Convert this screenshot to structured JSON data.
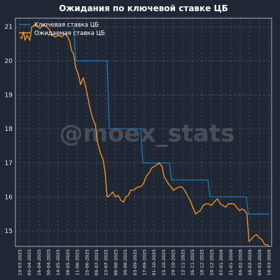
{
  "chart_data": {
    "type": "line",
    "title": "Ожидания по ключевой ставке ЦБ",
    "watermark": "@moex_stats",
    "ylim": [
      14.55,
      21.25
    ],
    "y_ticks": [
      15,
      16,
      17,
      18,
      19,
      20,
      21
    ],
    "x_ticks": [
      "19-03-2025",
      "02-04-2025",
      "16-04-2025",
      "30-04-2025",
      "14-05-2025",
      "28-05-2025",
      "11-06-2025",
      "25-06-2025",
      "09-07-2025",
      "23-07-2025",
      "06-08-2025",
      "20-08-2025",
      "03-09-2025",
      "17-09-2025",
      "01-10-2025",
      "15-10-2025",
      "29-10-2025",
      "12-11-2025",
      "26-11-2025",
      "10-12-2025",
      "24-12-2025",
      "07-01-2026",
      "21-01-2026",
      "04-02-2026",
      "18-02-2026",
      "04-03-2026",
      "18-03-2026"
    ],
    "x_start": "2025-03-13",
    "x_end": "2026-03-22",
    "grid": true,
    "legend_position": "top-left",
    "colors": {
      "background": "#1f2734",
      "key_rate": "#1f77b4",
      "expected": "#ff9a1a"
    },
    "series": [
      {
        "name": "Ключевая ставка ЦБ",
        "points": [
          [
            "2025-06-06",
            21.0
          ],
          [
            "2025-06-09",
            20.0
          ],
          [
            "2025-07-25",
            20.0
          ],
          [
            "2025-07-28",
            18.0
          ],
          [
            "2025-09-12",
            18.0
          ],
          [
            "2025-09-15",
            17.0
          ],
          [
            "2025-10-24",
            17.0
          ],
          [
            "2025-10-27",
            16.5
          ],
          [
            "2025-12-19",
            16.5
          ],
          [
            "2025-12-22",
            16.0
          ],
          [
            "2026-02-13",
            16.0
          ],
          [
            "2026-02-16",
            15.5
          ],
          [
            "2026-03-18",
            15.5
          ]
        ]
      },
      {
        "name": "Ожидаемая ставка ЦБ",
        "points": [
          [
            "2025-03-20",
            20.7
          ],
          [
            "2025-03-22",
            20.65
          ],
          [
            "2025-03-25",
            20.85
          ],
          [
            "2025-03-27",
            20.6
          ],
          [
            "2025-03-30",
            20.75
          ],
          [
            "2025-04-03",
            20.6
          ],
          [
            "2025-04-06",
            21.0
          ],
          [
            "2025-04-10",
            21.05
          ],
          [
            "2025-04-15",
            21.0
          ],
          [
            "2025-04-18",
            20.95
          ],
          [
            "2025-04-22",
            21.05
          ],
          [
            "2025-04-28",
            21.0
          ],
          [
            "2025-05-02",
            20.9
          ],
          [
            "2025-05-06",
            20.75
          ],
          [
            "2025-05-10",
            20.7
          ],
          [
            "2025-05-15",
            20.75
          ],
          [
            "2025-05-20",
            20.7
          ],
          [
            "2025-05-24",
            20.8
          ],
          [
            "2025-05-28",
            20.7
          ],
          [
            "2025-05-31",
            20.6
          ],
          [
            "2025-06-03",
            20.3
          ],
          [
            "2025-06-06",
            20.2
          ],
          [
            "2025-06-09",
            19.8
          ],
          [
            "2025-06-13",
            19.6
          ],
          [
            "2025-06-16",
            19.3
          ],
          [
            "2025-06-20",
            19.5
          ],
          [
            "2025-06-24",
            19.2
          ],
          [
            "2025-06-27",
            18.9
          ],
          [
            "2025-06-30",
            18.6
          ],
          [
            "2025-07-04",
            18.3
          ],
          [
            "2025-07-08",
            18.1
          ],
          [
            "2025-07-11",
            17.6
          ],
          [
            "2025-07-15",
            17.3
          ],
          [
            "2025-07-19",
            17.1
          ],
          [
            "2025-07-22",
            16.7
          ],
          [
            "2025-07-25",
            16.0
          ],
          [
            "2025-07-29",
            16.05
          ],
          [
            "2025-08-02",
            16.15
          ],
          [
            "2025-08-06",
            16.0
          ],
          [
            "2025-08-10",
            16.05
          ],
          [
            "2025-08-14",
            15.9
          ],
          [
            "2025-08-18",
            15.85
          ],
          [
            "2025-08-21",
            16.0
          ],
          [
            "2025-08-25",
            16.05
          ],
          [
            "2025-08-28",
            16.2
          ],
          [
            "2025-09-01",
            16.2
          ],
          [
            "2025-09-05",
            16.25
          ],
          [
            "2025-09-08",
            16.3
          ],
          [
            "2025-09-12",
            16.3
          ],
          [
            "2025-09-16",
            16.4
          ],
          [
            "2025-09-20",
            16.6
          ],
          [
            "2025-09-24",
            16.7
          ],
          [
            "2025-09-28",
            16.85
          ],
          [
            "2025-10-02",
            16.9
          ],
          [
            "2025-10-06",
            16.95
          ],
          [
            "2025-10-09",
            17.0
          ],
          [
            "2025-10-13",
            16.9
          ],
          [
            "2025-10-16",
            16.6
          ],
          [
            "2025-10-19",
            16.5
          ],
          [
            "2025-10-22",
            16.4
          ],
          [
            "2025-10-26",
            16.3
          ],
          [
            "2025-10-30",
            16.2
          ],
          [
            "2025-11-03",
            16.25
          ],
          [
            "2025-11-07",
            16.3
          ],
          [
            "2025-11-11",
            16.3
          ],
          [
            "2025-11-15",
            16.2
          ],
          [
            "2025-11-19",
            16.05
          ],
          [
            "2025-11-23",
            15.9
          ],
          [
            "2025-11-27",
            15.7
          ],
          [
            "2025-12-01",
            15.5
          ],
          [
            "2025-12-04",
            15.55
          ],
          [
            "2025-12-08",
            15.6
          ],
          [
            "2025-12-12",
            15.75
          ],
          [
            "2025-12-16",
            15.8
          ],
          [
            "2025-12-20",
            15.8
          ],
          [
            "2025-12-24",
            15.75
          ],
          [
            "2025-12-28",
            15.85
          ],
          [
            "2026-01-02",
            15.95
          ],
          [
            "2026-01-06",
            15.8
          ],
          [
            "2026-01-10",
            15.75
          ],
          [
            "2026-01-14",
            15.7
          ],
          [
            "2026-01-18",
            15.8
          ],
          [
            "2026-01-22",
            15.8
          ],
          [
            "2026-01-26",
            15.8
          ],
          [
            "2026-01-30",
            15.7
          ],
          [
            "2026-02-03",
            15.6
          ],
          [
            "2026-02-07",
            15.65
          ],
          [
            "2026-02-11",
            15.6
          ],
          [
            "2026-02-14",
            15.5
          ],
          [
            "2026-02-17",
            14.7
          ],
          [
            "2026-02-20",
            14.75
          ],
          [
            "2026-02-24",
            14.85
          ],
          [
            "2026-02-28",
            14.9
          ],
          [
            "2026-03-04",
            14.8
          ],
          [
            "2026-03-08",
            14.75
          ],
          [
            "2026-03-12",
            14.6
          ],
          [
            "2026-03-16",
            14.6
          ],
          [
            "2026-03-18",
            14.55
          ]
        ]
      }
    ]
  }
}
